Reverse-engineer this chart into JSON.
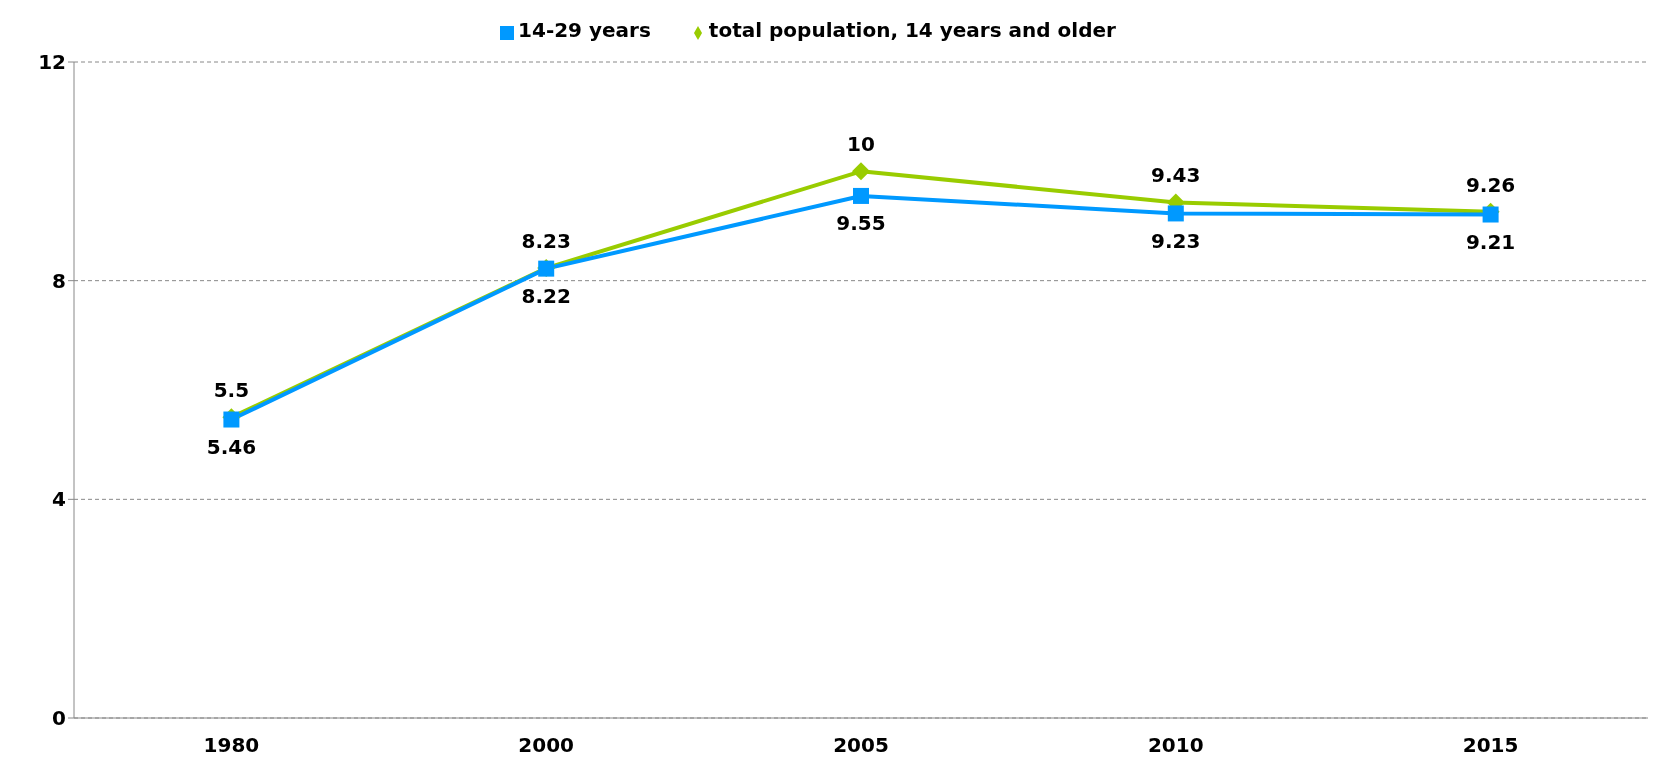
{
  "chart_data": {
    "type": "line",
    "categories": [
      "1980",
      "2000",
      "2005",
      "2010",
      "2015"
    ],
    "series": [
      {
        "name": "total population, 14 years and older",
        "color": "#99cc00",
        "marker": "diamond",
        "values": [
          5.5,
          8.23,
          10,
          9.43,
          9.26
        ]
      },
      {
        "name": "14-29 years",
        "color": "#0099ff",
        "marker": "square",
        "values": [
          5.46,
          8.22,
          9.55,
          9.23,
          9.21
        ]
      }
    ],
    "ylim": [
      0,
      12
    ],
    "yticks": [
      0,
      4,
      8,
      12
    ],
    "grid": "y",
    "legend": "top",
    "data_labels": true
  }
}
